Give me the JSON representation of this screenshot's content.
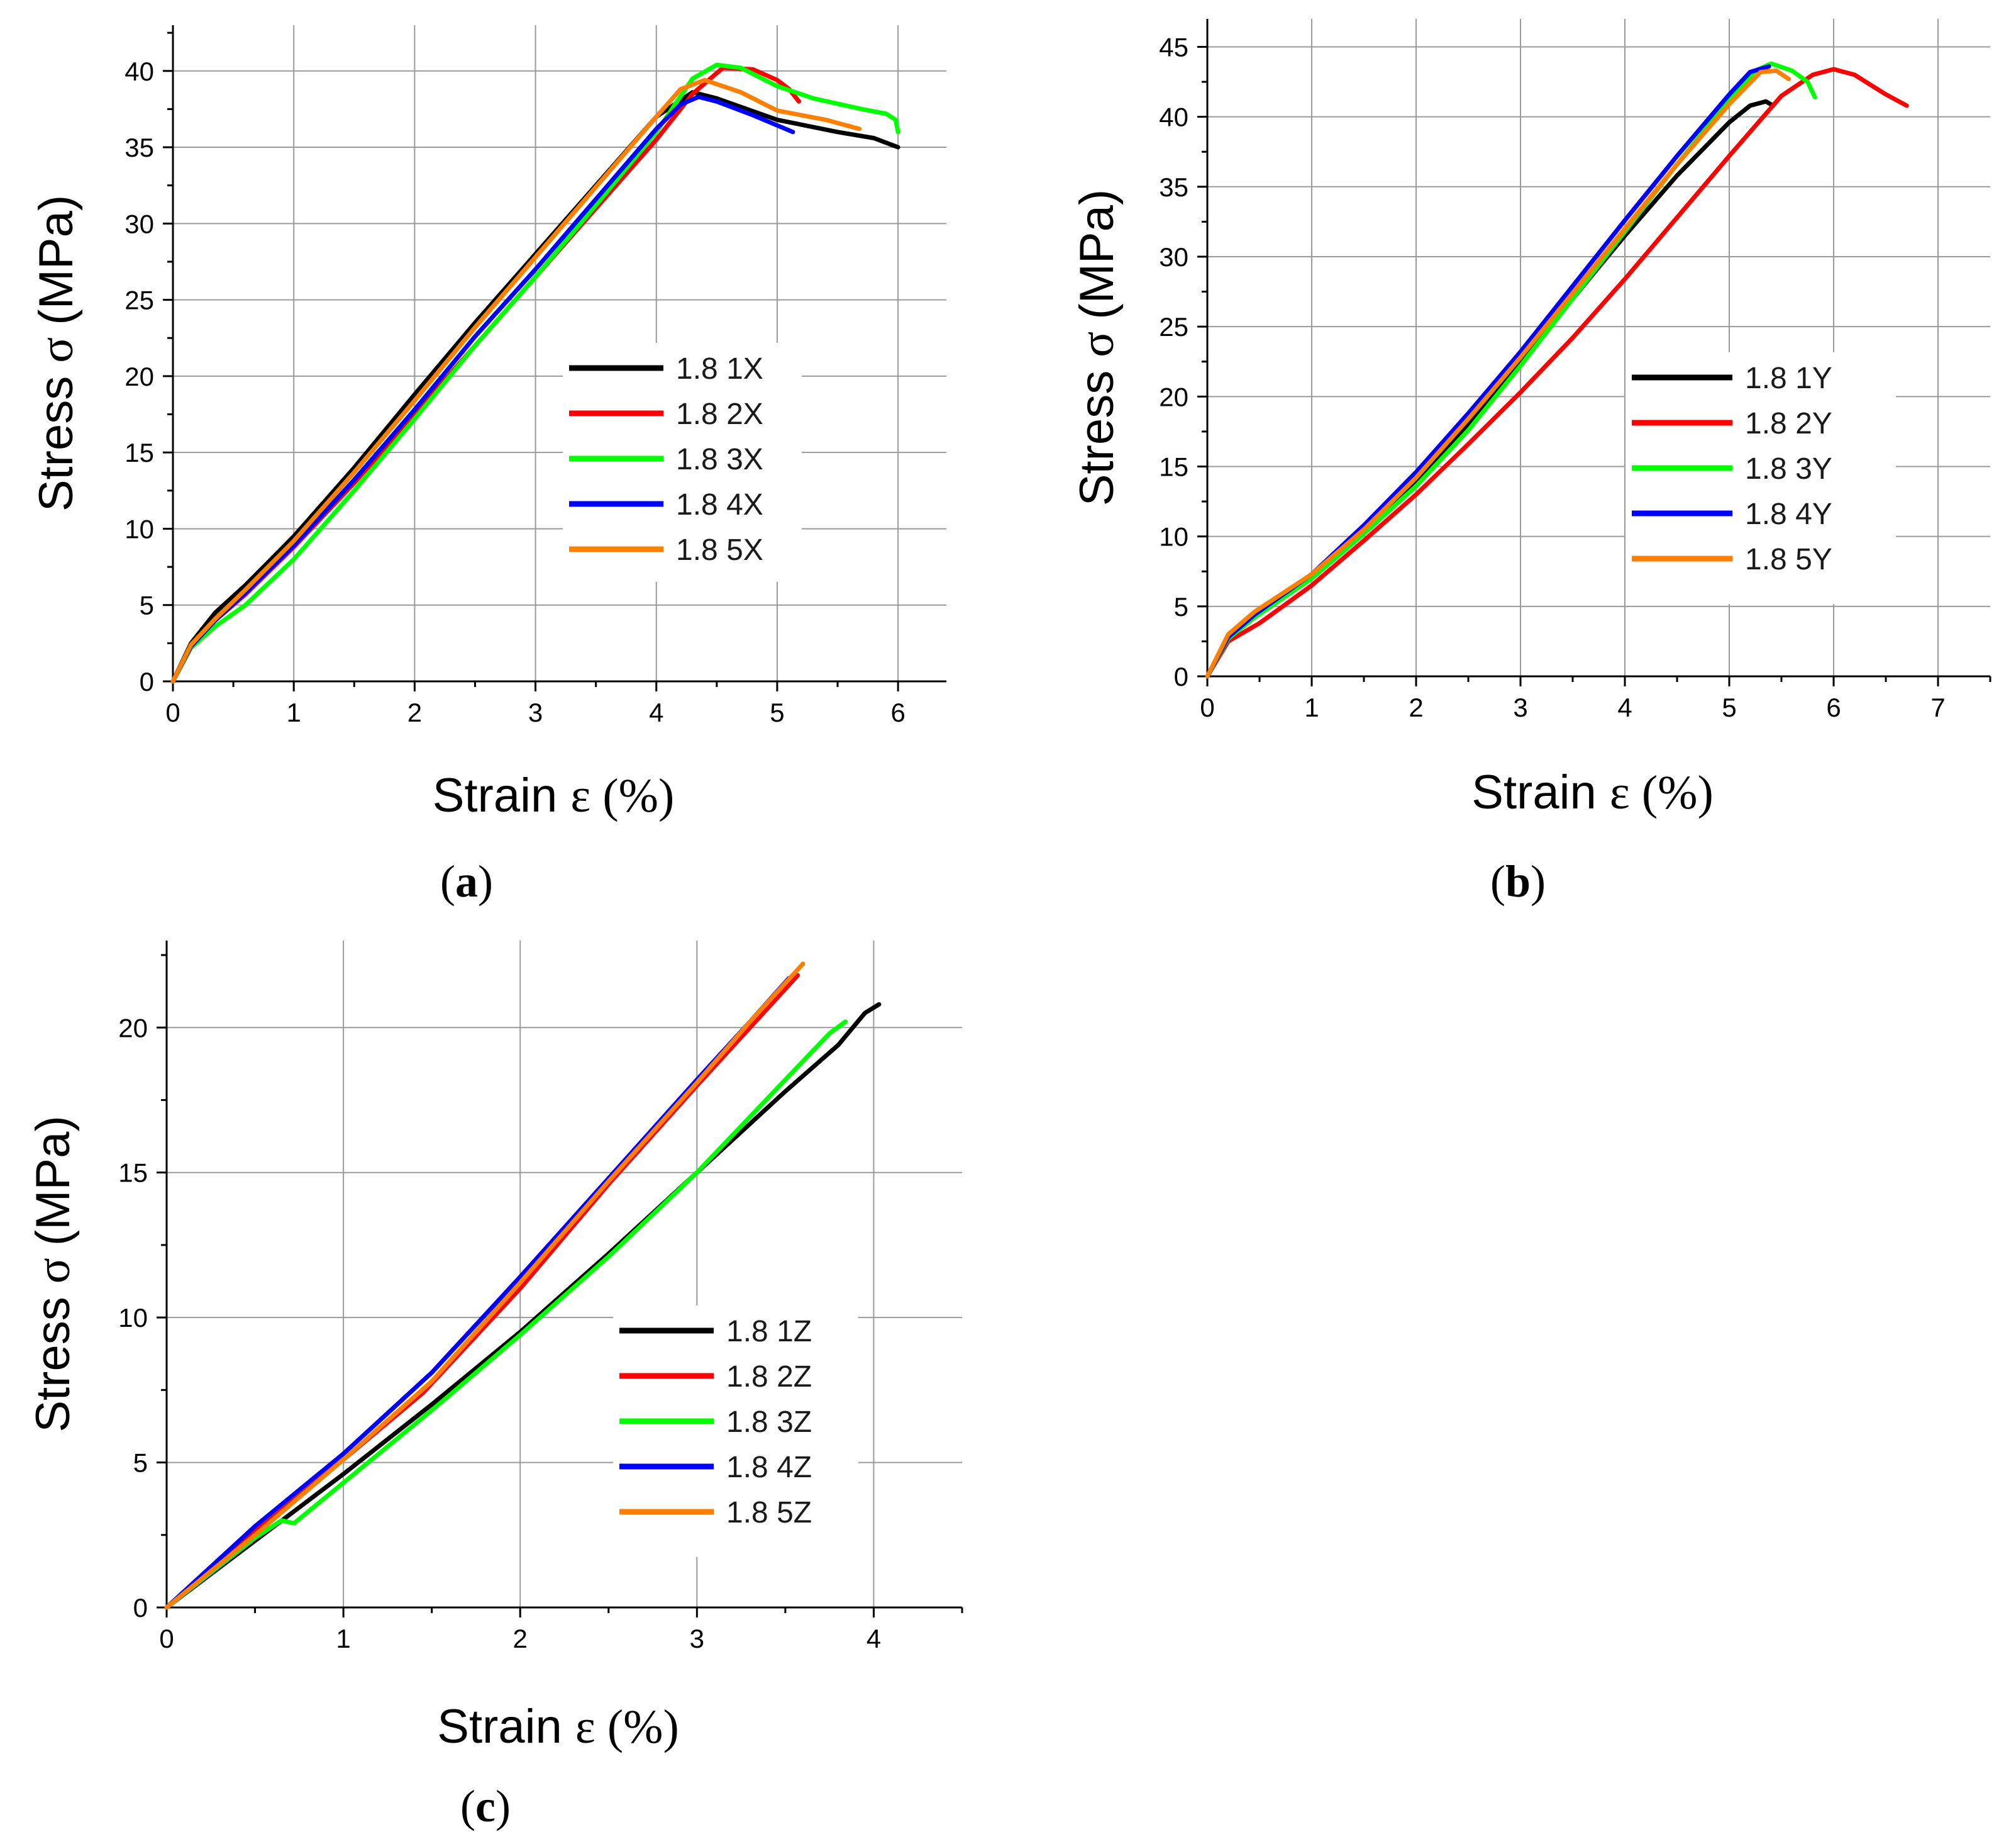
{
  "chart_data": [
    {
      "type": "line",
      "panel": "a",
      "xlabel": "Strain",
      "xlabel_symbol": "ε (%)",
      "ylabel": "Stress",
      "ylabel_symbol": "σ",
      "ylabel_unit": "(MPa)",
      "xlim": [
        0,
        6.4
      ],
      "ylim": [
        0,
        43
      ],
      "xticks": [
        0,
        1,
        2,
        3,
        4,
        5,
        6
      ],
      "xtick_labels": [
        "0",
        "1",
        "2",
        "3",
        "4",
        "5",
        "6"
      ],
      "yticks": [
        0,
        5,
        10,
        15,
        20,
        25,
        30,
        35,
        40
      ],
      "ytick_labels": [
        "0",
        "5",
        "10",
        "15",
        "20",
        "25",
        "30",
        "35",
        "40"
      ],
      "grid": true,
      "legend_position": "center-right",
      "series": [
        {
          "name": "1.8 1X",
          "color": "#000000",
          "x": [
            0,
            0.15,
            0.35,
            0.6,
            1.0,
            1.5,
            2.0,
            2.5,
            3.0,
            3.5,
            4.0,
            4.3,
            4.5,
            5.0,
            5.5,
            5.8,
            6.0
          ],
          "y": [
            0,
            2.5,
            4.5,
            6.3,
            9.5,
            14,
            18.8,
            23.5,
            28,
            32.5,
            37,
            38.6,
            38.2,
            36.8,
            36,
            35.6,
            35
          ]
        },
        {
          "name": "1.8 2X",
          "color": "#ff0000",
          "x": [
            0,
            0.15,
            0.35,
            0.6,
            1.0,
            1.5,
            2.0,
            2.5,
            3.0,
            3.5,
            4.0,
            4.3,
            4.55,
            4.8,
            5.0,
            5.1,
            5.18
          ],
          "y": [
            0,
            2.3,
            4.0,
            5.7,
            8.8,
            13,
            17.5,
            22,
            26.5,
            31,
            35.5,
            38.5,
            40.2,
            40.1,
            39.4,
            38.8,
            38
          ]
        },
        {
          "name": "1.8 3X",
          "color": "#00ff00",
          "x": [
            0,
            0.15,
            0.35,
            0.6,
            1.0,
            1.5,
            2.0,
            2.5,
            3.0,
            3.5,
            4.0,
            4.3,
            4.5,
            4.7,
            5.0,
            5.3,
            5.7,
            5.9,
            5.98,
            6.0
          ],
          "y": [
            0,
            2.2,
            3.6,
            5.0,
            8.0,
            12.5,
            17.2,
            22,
            26.5,
            31.2,
            36,
            39.5,
            40.4,
            40.2,
            39,
            38.2,
            37.5,
            37.2,
            36.8,
            36
          ]
        },
        {
          "name": "1.8 4X",
          "color": "#0000ff",
          "x": [
            0,
            0.15,
            0.35,
            0.6,
            1.0,
            1.5,
            2.0,
            2.5,
            3.0,
            3.5,
            4.0,
            4.2,
            4.35,
            4.5,
            4.8,
            5.13
          ],
          "y": [
            0,
            2.3,
            4.0,
            5.8,
            8.9,
            13.2,
            17.8,
            22.6,
            27,
            31.6,
            36.2,
            37.8,
            38.3,
            38.0,
            37.1,
            36
          ]
        },
        {
          "name": "1.8 5X",
          "color": "#ff8000",
          "x": [
            0,
            0.15,
            0.35,
            0.6,
            1.0,
            1.5,
            2.0,
            2.5,
            3.0,
            3.5,
            4.0,
            4.2,
            4.4,
            4.7,
            5.0,
            5.4,
            5.68
          ],
          "y": [
            0,
            2.4,
            4.1,
            6.0,
            9.2,
            13.7,
            18.4,
            23.2,
            27.8,
            32.4,
            37,
            38.8,
            39.4,
            38.6,
            37.4,
            36.8,
            36.2
          ]
        }
      ]
    },
    {
      "type": "line",
      "panel": "b",
      "xlabel": "Strain",
      "xlabel_symbol": "ε (%)",
      "ylabel": "Stress",
      "ylabel_symbol": "σ",
      "ylabel_unit": "(MPa)",
      "xlim": [
        0,
        7.5
      ],
      "ylim": [
        0,
        47
      ],
      "xticks": [
        0,
        1,
        2,
        3,
        4,
        5,
        6,
        7
      ],
      "xtick_labels": [
        "0",
        "1",
        "2",
        "3",
        "4",
        "5",
        "6",
        "7"
      ],
      "yticks": [
        0,
        5,
        10,
        15,
        20,
        25,
        30,
        35,
        40,
        45
      ],
      "ytick_labels": [
        "0",
        "5",
        "10",
        "15",
        "20",
        "25",
        "30",
        "35",
        "40",
        "45"
      ],
      "grid": true,
      "legend_position": "center-right",
      "series": [
        {
          "name": "1.8 1Y",
          "color": "#000000",
          "x": [
            0,
            0.2,
            0.45,
            1.0,
            1.5,
            2.0,
            2.5,
            3.0,
            3.5,
            4.0,
            4.5,
            5.0,
            5.2,
            5.35,
            5.42
          ],
          "y": [
            0,
            2.8,
            4.4,
            7.2,
            10.5,
            14,
            18,
            22.4,
            27,
            31.5,
            35.8,
            39.6,
            40.8,
            41.1,
            40.8
          ]
        },
        {
          "name": "1.8 2Y",
          "color": "#ff0000",
          "x": [
            0,
            0.2,
            0.5,
            1.0,
            1.5,
            2.0,
            2.5,
            3.0,
            3.5,
            4.0,
            4.5,
            5.0,
            5.5,
            5.8,
            6.0,
            6.2,
            6.5,
            6.7
          ],
          "y": [
            0,
            2.5,
            3.8,
            6.5,
            9.7,
            13,
            16.6,
            20.3,
            24.2,
            28.4,
            32.8,
            37.2,
            41.5,
            43.0,
            43.4,
            43.0,
            41.6,
            40.8
          ]
        },
        {
          "name": "1.8 3Y",
          "color": "#00ff00",
          "x": [
            0,
            0.2,
            0.45,
            1.0,
            1.5,
            2.0,
            2.5,
            3.0,
            3.5,
            4.0,
            4.5,
            5.0,
            5.25,
            5.4,
            5.6,
            5.75,
            5.82
          ],
          "y": [
            0,
            2.7,
            4.2,
            7.0,
            10.2,
            13.6,
            17.6,
            22.2,
            27,
            31.8,
            36.6,
            41.2,
            43.3,
            43.8,
            43.3,
            42.5,
            41.4
          ]
        },
        {
          "name": "1.8 4Y",
          "color": "#0000ff",
          "x": [
            0,
            0.2,
            0.45,
            1.0,
            1.5,
            2.0,
            2.5,
            3.0,
            3.5,
            4.0,
            4.5,
            5.0,
            5.2,
            5.38
          ],
          "y": [
            0,
            2.8,
            4.4,
            7.3,
            10.8,
            14.6,
            18.8,
            23.2,
            27.9,
            32.6,
            37.2,
            41.6,
            43.2,
            43.6
          ]
        },
        {
          "name": "1.8 5Y",
          "color": "#ff8000",
          "x": [
            0,
            0.2,
            0.45,
            1.0,
            1.5,
            2.0,
            2.5,
            3.0,
            3.5,
            4.0,
            4.5,
            5.0,
            5.3,
            5.45,
            5.57
          ],
          "y": [
            0,
            3.0,
            4.6,
            7.3,
            10.5,
            14.2,
            18.4,
            22.8,
            27.4,
            32,
            36.6,
            40.9,
            43.2,
            43.3,
            42.7
          ]
        }
      ]
    },
    {
      "type": "line",
      "panel": "c",
      "xlabel": "Strain",
      "xlabel_symbol": "ε (%)",
      "ylabel": "Stress",
      "ylabel_symbol": "σ",
      "ylabel_unit": "(MPa)",
      "xlim": [
        0,
        4.5
      ],
      "ylim": [
        0,
        23
      ],
      "xticks": [
        0,
        1,
        2,
        3,
        4
      ],
      "xtick_labels": [
        "0",
        "1",
        "2",
        "3",
        "4"
      ],
      "yticks": [
        0,
        5,
        10,
        15,
        20
      ],
      "ytick_labels": [
        "0",
        "5",
        "10",
        "15",
        "20"
      ],
      "grid": true,
      "legend_position": "center-right",
      "series": [
        {
          "name": "1.8 1Z",
          "color": "#000000",
          "x": [
            0,
            0.5,
            1.0,
            1.5,
            2.0,
            2.5,
            3.0,
            3.5,
            3.8,
            3.95,
            4.03
          ],
          "y": [
            0,
            2.3,
            4.6,
            7.0,
            9.5,
            12.2,
            15.0,
            17.8,
            19.4,
            20.5,
            20.8
          ]
        },
        {
          "name": "1.8 2Z",
          "color": "#ff0000",
          "x": [
            0,
            0.5,
            1.0,
            1.45,
            2.0,
            2.5,
            3.0,
            3.3,
            3.57
          ],
          "y": [
            0,
            2.6,
            5.1,
            7.4,
            11.0,
            14.6,
            18.0,
            20.0,
            21.8
          ]
        },
        {
          "name": "1.8 3Z",
          "color": "#00ff00",
          "x": [
            0,
            0.5,
            0.65,
            0.72,
            1.0,
            1.5,
            2.0,
            2.5,
            3.0,
            3.5,
            3.75,
            3.84
          ],
          "y": [
            0,
            2.4,
            3.0,
            2.9,
            4.3,
            6.8,
            9.4,
            12.1,
            15.0,
            18.2,
            19.8,
            20.2
          ]
        },
        {
          "name": "1.8 4Z",
          "color": "#0000ff",
          "x": [
            0,
            0.5,
            1.0,
            1.5,
            2.0,
            2.5,
            3.0,
            3.3,
            3.52
          ],
          "y": [
            0,
            2.8,
            5.3,
            8.1,
            11.4,
            14.8,
            18.2,
            20.2,
            21.7
          ]
        },
        {
          "name": "1.8 5Z",
          "color": "#ff8000",
          "x": [
            0,
            0.5,
            1.0,
            1.5,
            2.0,
            2.5,
            3.0,
            3.3,
            3.6
          ],
          "y": [
            0,
            2.5,
            5.1,
            7.8,
            11.2,
            14.7,
            18.1,
            20.2,
            22.2
          ]
        }
      ]
    }
  ],
  "panel_labels": [
    "a",
    "b",
    "c"
  ]
}
